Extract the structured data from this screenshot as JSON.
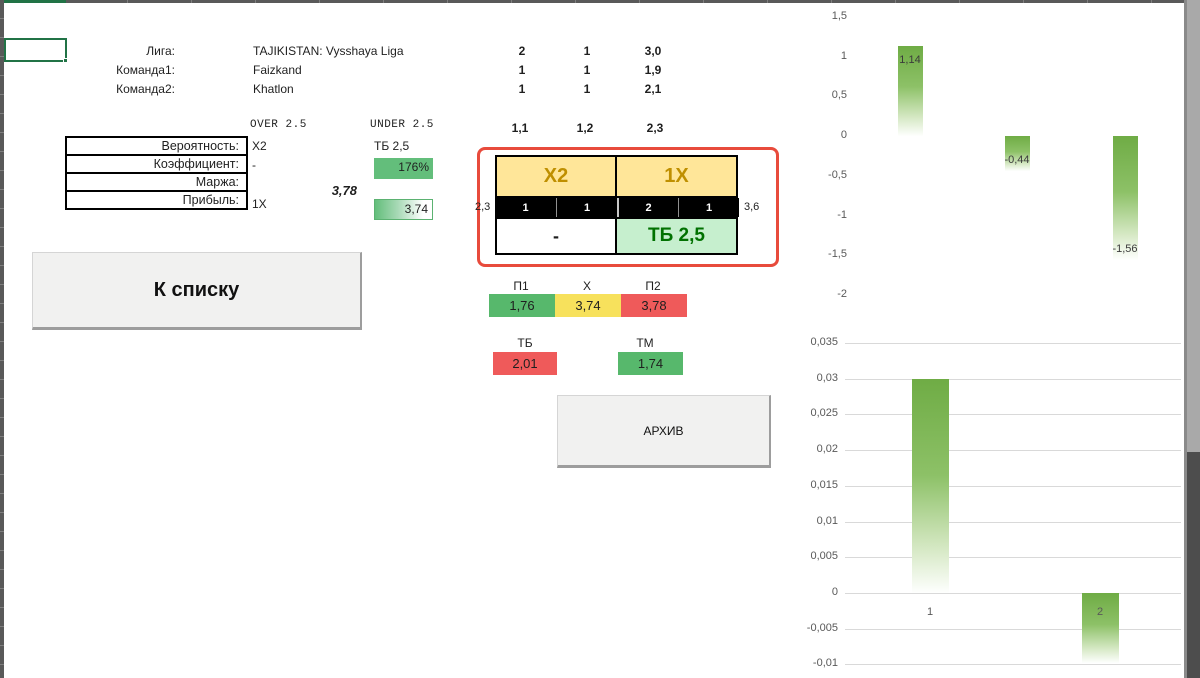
{
  "match": {
    "league_label": "Лига:",
    "league": "TAJIKISTAN: Vysshaya Liga",
    "team1_label": "Команда1:",
    "team1": "Faizkand",
    "team2_label": "Команда2:",
    "team2": "Khatlon",
    "stats_rows": [
      [
        "2",
        "1",
        "3,0"
      ],
      [
        "1",
        "1",
        "1,9"
      ],
      [
        "1",
        "1",
        "2,1"
      ]
    ],
    "odds_row": [
      "1,1",
      "1,2",
      "2,3"
    ]
  },
  "stats_table": {
    "over_header": "OVER 2.5",
    "under_header": "UNDER 2.5",
    "rows": [
      {
        "label": "Вероятность:",
        "over": "X2",
        "under": "ТБ 2,5"
      },
      {
        "label": "Коэффициент:",
        "over": "-",
        "under": "176%"
      },
      {
        "label": "Маржа:",
        "value": "3,78"
      },
      {
        "label": "Прибыль:",
        "over": "1X",
        "under": "3,74"
      }
    ]
  },
  "bet_box": {
    "left_value": "2,3",
    "right_value": "3,6",
    "headers": [
      "X2",
      "1X"
    ],
    "scores": [
      "1",
      "1",
      "2",
      "1"
    ],
    "picks": [
      "-",
      "ТБ 2,5"
    ]
  },
  "outcomes": {
    "labels": [
      "П1",
      "X",
      "П2"
    ],
    "values": [
      "1,76",
      "3,74",
      "3,78"
    ],
    "totals_labels": [
      "ТБ",
      "ТМ"
    ],
    "totals_values": [
      "2,01",
      "1,74"
    ]
  },
  "buttons": {
    "back_label": "К списку",
    "archive_label": "АРХИВ"
  },
  "colors": {
    "green": "#57b86c",
    "yellow": "#f7e15c",
    "red": "#ef5a5a",
    "cell_green_light": "#c6efce",
    "cell_yellow_light": "#ffe699",
    "bar_green": "#70ad47",
    "red_border": "#e84b3c",
    "excel_green": "#217346"
  },
  "chart_data": [
    {
      "type": "bar",
      "title": "",
      "categories": [],
      "values": [
        1.14,
        -0.44,
        -1.56
      ],
      "data_labels": [
        "1,14",
        "-0,44",
        "-1,56"
      ],
      "yticks": [
        "1,5",
        "1",
        "0,5",
        "0",
        "-0,5",
        "-1",
        "-1,5",
        "-2"
      ],
      "ylim": [
        1.5,
        -2.3
      ],
      "gridlines": false,
      "legend": "none"
    },
    {
      "type": "bar",
      "title": "",
      "categories": [
        "1",
        "2"
      ],
      "values": [
        0.03,
        -0.0098
      ],
      "data_labels": [],
      "yticks": [
        "0,035",
        "0,03",
        "0,025",
        "0,02",
        "0,015",
        "0,01",
        "0,005",
        "0",
        "-0,005",
        "-0,01"
      ],
      "ylim": [
        0.035,
        -0.012
      ],
      "gridlines": true,
      "legend": "none"
    }
  ]
}
